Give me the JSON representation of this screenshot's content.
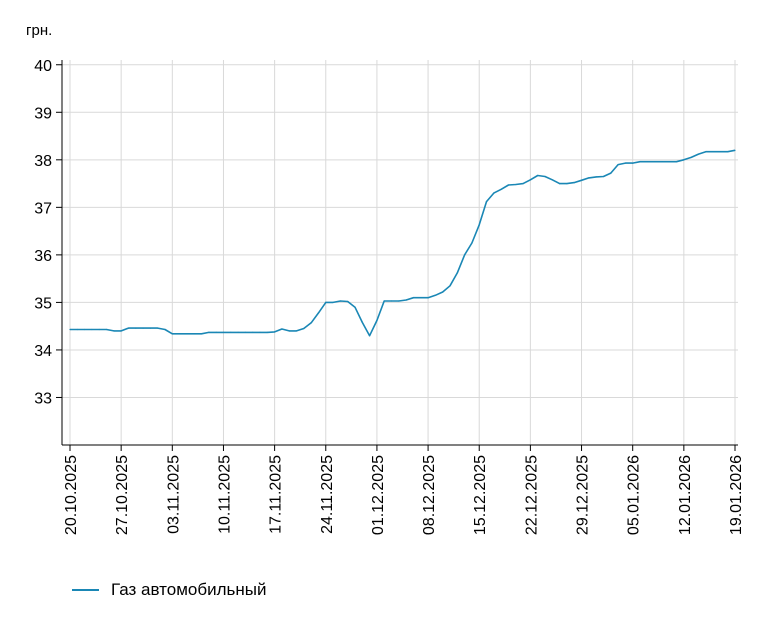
{
  "chart_data": {
    "type": "line",
    "title": "",
    "ylabel": "грн.",
    "xlabel": "",
    "ylim": [
      32,
      40.1
    ],
    "yticks": [
      33,
      34,
      35,
      36,
      37,
      38,
      39,
      40
    ],
    "grid": true,
    "legend_position": "bottom-left",
    "color": "#1a87b5",
    "xticks": [
      "20.10.2025",
      "27.10.2025",
      "03.11.2025",
      "10.11.2025",
      "17.11.2025",
      "24.11.2025",
      "01.12.2025",
      "08.12.2025",
      "15.12.2025",
      "22.12.2025",
      "29.12.2025",
      "05.01.2026",
      "12.01.2026",
      "19.01.2026"
    ],
    "series": [
      {
        "name": "Газ автомобильный",
        "points": [
          [
            "20.10.2025",
            34.43
          ],
          [
            "21.10.2025",
            34.43
          ],
          [
            "22.10.2025",
            34.43
          ],
          [
            "23.10.2025",
            34.43
          ],
          [
            "24.10.2025",
            34.43
          ],
          [
            "25.10.2025",
            34.43
          ],
          [
            "26.10.2025",
            34.4
          ],
          [
            "27.10.2025",
            34.4
          ],
          [
            "28.10.2025",
            34.46
          ],
          [
            "29.10.2025",
            34.46
          ],
          [
            "30.10.2025",
            34.46
          ],
          [
            "31.10.2025",
            34.46
          ],
          [
            "01.11.2025",
            34.46
          ],
          [
            "02.11.2025",
            34.43
          ],
          [
            "03.11.2025",
            34.34
          ],
          [
            "04.11.2025",
            34.34
          ],
          [
            "05.11.2025",
            34.34
          ],
          [
            "06.11.2025",
            34.34
          ],
          [
            "07.11.2025",
            34.34
          ],
          [
            "08.11.2025",
            34.37
          ],
          [
            "09.11.2025",
            34.37
          ],
          [
            "10.11.2025",
            34.37
          ],
          [
            "11.11.2025",
            34.37
          ],
          [
            "12.11.2025",
            34.37
          ],
          [
            "13.11.2025",
            34.37
          ],
          [
            "14.11.2025",
            34.37
          ],
          [
            "15.11.2025",
            34.37
          ],
          [
            "16.11.2025",
            34.37
          ],
          [
            "17.11.2025",
            34.38
          ],
          [
            "18.11.2025",
            34.44
          ],
          [
            "19.11.2025",
            34.4
          ],
          [
            "20.11.2025",
            34.4
          ],
          [
            "21.11.2025",
            34.45
          ],
          [
            "22.11.2025",
            34.57
          ],
          [
            "23.11.2025",
            34.78
          ],
          [
            "24.11.2025",
            35.0
          ],
          [
            "25.11.2025",
            35.0
          ],
          [
            "26.11.2025",
            35.03
          ],
          [
            "27.11.2025",
            35.02
          ],
          [
            "28.11.2025",
            34.9
          ],
          [
            "29.11.2025",
            34.58
          ],
          [
            "30.11.2025",
            34.3
          ],
          [
            "01.12.2025",
            34.62
          ],
          [
            "02.12.2025",
            35.03
          ],
          [
            "03.12.2025",
            35.03
          ],
          [
            "04.12.2025",
            35.03
          ],
          [
            "05.12.2025",
            35.05
          ],
          [
            "06.12.2025",
            35.1
          ],
          [
            "07.12.2025",
            35.1
          ],
          [
            "08.12.2025",
            35.1
          ],
          [
            "09.12.2025",
            35.15
          ],
          [
            "10.12.2025",
            35.22
          ],
          [
            "11.12.2025",
            35.35
          ],
          [
            "12.12.2025",
            35.62
          ],
          [
            "13.12.2025",
            36.0
          ],
          [
            "14.12.2025",
            36.25
          ],
          [
            "15.12.2025",
            36.63
          ],
          [
            "16.12.2025",
            37.12
          ],
          [
            "17.12.2025",
            37.3
          ],
          [
            "18.12.2025",
            37.38
          ],
          [
            "19.12.2025",
            37.47
          ],
          [
            "20.12.2025",
            37.48
          ],
          [
            "21.12.2025",
            37.5
          ],
          [
            "22.12.2025",
            37.58
          ],
          [
            "23.12.2025",
            37.67
          ],
          [
            "24.12.2025",
            37.65
          ],
          [
            "25.12.2025",
            37.58
          ],
          [
            "26.12.2025",
            37.5
          ],
          [
            "27.12.2025",
            37.5
          ],
          [
            "28.12.2025",
            37.52
          ],
          [
            "29.12.2025",
            37.57
          ],
          [
            "30.12.2025",
            37.62
          ],
          [
            "31.12.2025",
            37.64
          ],
          [
            "01.01.2026",
            37.65
          ],
          [
            "02.01.2026",
            37.72
          ],
          [
            "03.01.2026",
            37.9
          ],
          [
            "04.01.2026",
            37.93
          ],
          [
            "05.01.2026",
            37.93
          ],
          [
            "06.01.2026",
            37.96
          ],
          [
            "07.01.2026",
            37.96
          ],
          [
            "08.01.2026",
            37.96
          ],
          [
            "09.01.2026",
            37.96
          ],
          [
            "10.01.2026",
            37.96
          ],
          [
            "11.01.2026",
            37.96
          ],
          [
            "12.01.2026",
            38.0
          ],
          [
            "13.01.2026",
            38.05
          ],
          [
            "14.01.2026",
            38.12
          ],
          [
            "15.01.2026",
            38.17
          ],
          [
            "16.01.2026",
            38.17
          ],
          [
            "17.01.2026",
            38.17
          ],
          [
            "18.01.2026",
            38.17
          ],
          [
            "19.01.2026",
            38.2
          ]
        ]
      }
    ]
  }
}
